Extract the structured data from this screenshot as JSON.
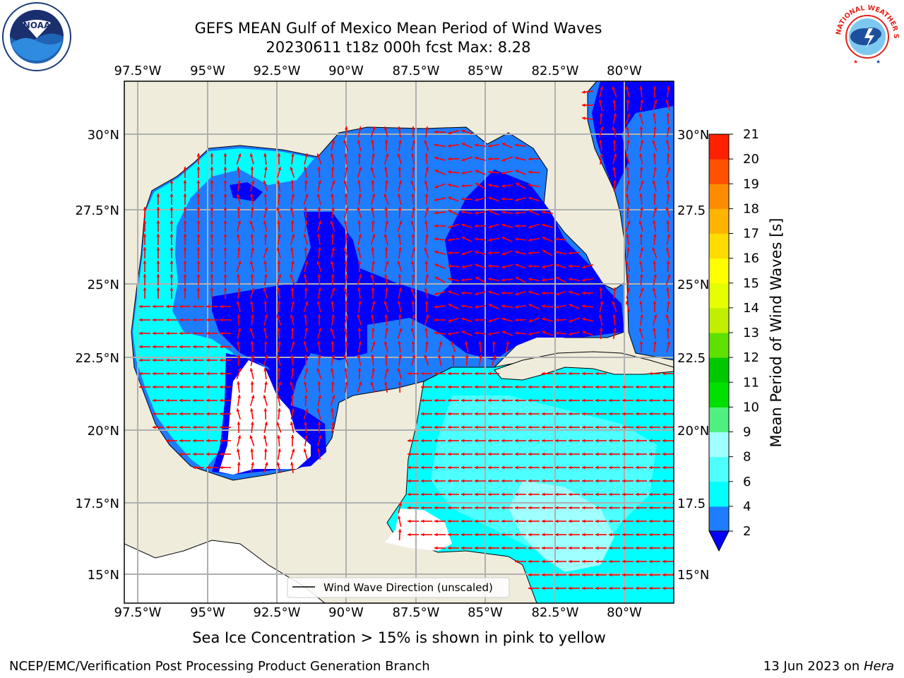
{
  "header": {
    "title_line1": "GEFS MEAN Gulf of Mexico Mean Period of Wind Waves",
    "title_line2": "20230611 t18z 000h fcst   Max: 8.28"
  },
  "logos": {
    "left": "NOAA",
    "right": "NATIONAL WEATHER SERVICE"
  },
  "map": {
    "lon_labels": [
      "97.5°W",
      "95°W",
      "92.5°W",
      "90°W",
      "87.5°W",
      "85°W",
      "82.5°W",
      "80°W"
    ],
    "lat_labels_left": [
      "30°N",
      "27.5°N",
      "25°N",
      "22.5°N",
      "20°N",
      "17.5°N",
      "15°N"
    ],
    "lat_labels_right": [
      "30°N",
      "27.5",
      "25°N",
      "22.5",
      "20°N",
      "17.5",
      "15°N"
    ],
    "legend_label": "Wind Wave Direction (unscaled)",
    "colors": {
      "land": "#efecdc",
      "arrow": "#ff0000",
      "grid": "#b0b0b0",
      "band_2_4": "#1e7cff",
      "band_under_2": "#0000ff",
      "band_4_6": "#00ffff",
      "band_6_8": "#4dffff",
      "band_8_9": "#a0ffff"
    }
  },
  "colorbar": {
    "label": "Mean Period of Wind Waves [s]",
    "ticks": [
      "2",
      "4",
      "6",
      "8",
      "9",
      "10",
      "11",
      "12",
      "13",
      "14",
      "15",
      "16",
      "17",
      "18",
      "19",
      "20",
      "21"
    ],
    "colors": [
      "#1e7cff",
      "#00ffff",
      "#4dffff",
      "#a0ffff",
      "#50f080",
      "#00e000",
      "#00c800",
      "#60e000",
      "#c0f000",
      "#e6ff00",
      "#ffff00",
      "#ffdc00",
      "#ffb400",
      "#ff8c00",
      "#ff5000",
      "#ff2000"
    ],
    "under_color": "#0000ff"
  },
  "footer": {
    "subtitle": "Sea Ice Concentration > 15% is shown in pink to yellow",
    "credit": "NCEP/EMC/Verification Post Processing Product Generation Branch",
    "date_prefix": "13 Jun 2023 on ",
    "machine": "Hera"
  }
}
